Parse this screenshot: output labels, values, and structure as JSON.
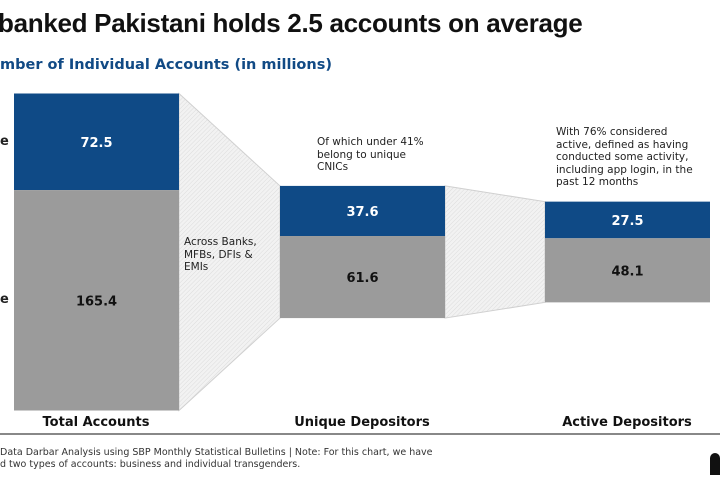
{
  "title": "banked Pakistani holds 2.5 accounts on average",
  "subtitle": "mber of Individual Accounts (in millions)",
  "chart_data": {
    "type": "bar",
    "stacked": true,
    "categories": [
      "Total Accounts",
      "Unique Depositors",
      "Active Depositors"
    ],
    "series": [
      {
        "name": "e",
        "values": [
          72.5,
          37.6,
          27.5
        ],
        "color": "#0f4a86"
      },
      {
        "name": "e",
        "values": [
          165.4,
          61.6,
          48.1
        ],
        "color": "#9b9b9b"
      }
    ],
    "annotations": [
      "Across Banks, MFBs, DFIs & EMIs",
      "Of which under 41% belong to unique CNICs",
      "With 76% considered active, defined as having conducted some activity, including app login, in the past 12 months"
    ]
  },
  "footer": {
    "line1": "Data Darbar Analysis using SBP Monthly Statistical Bulletins | Note: For this chart, we have",
    "line2": "d two types of accounts: business and individual transgenders."
  }
}
